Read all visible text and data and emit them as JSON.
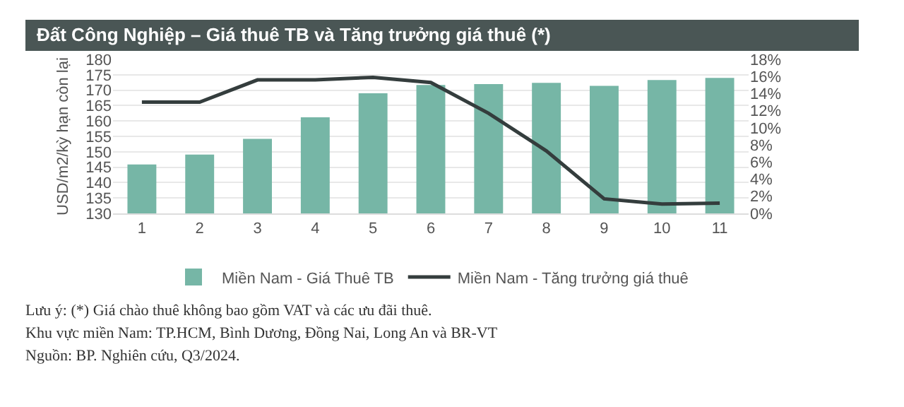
{
  "chart_data": {
    "type": "bar",
    "title": "Đất Công Nghiệp – Giá thuê TB và Tăng trưởng giá thuê (*)",
    "ylabel": "USD/m2/kỳ hạn còn lại",
    "categories": [
      "1",
      "2",
      "3",
      "4",
      "5",
      "6",
      "7",
      "8",
      "9",
      "10",
      "11"
    ],
    "series": [
      {
        "name": "Miền Nam - Giá Thuê TB",
        "color": "#76b6a6",
        "values": [
          145.9,
          149.1,
          154.2,
          161.2,
          169,
          171.7,
          172,
          172.4,
          171.4,
          173.3,
          174
        ]
      },
      {
        "name": "Miền Nam - Tăng trưởng giá thuê",
        "type": "line",
        "axis": "y2",
        "color": "#343d3d",
        "values": [
          13,
          13,
          15.6,
          15.6,
          15.9,
          15.3,
          11.7,
          7.3,
          1.7,
          1.1,
          1.2
        ]
      }
    ],
    "ylim": [
      130,
      180
    ],
    "yticks": [
      130,
      135,
      140,
      145,
      150,
      155,
      160,
      165,
      170,
      175,
      180
    ],
    "y2lim": [
      0,
      18
    ],
    "y2ticks": [
      {
        "value": 0,
        "label": "0%"
      },
      {
        "value": 2,
        "label": "2%"
      },
      {
        "value": 4,
        "label": "4%"
      },
      {
        "value": 6,
        "label": "6%"
      },
      {
        "value": 8,
        "label": "8%"
      },
      {
        "value": 10,
        "label": "10%"
      },
      {
        "value": 12,
        "label": "12%"
      },
      {
        "value": 14,
        "label": "14%"
      },
      {
        "value": 16,
        "label": "16%"
      },
      {
        "value": 18,
        "label": "18%"
      }
    ],
    "grid": "y",
    "legend": "bottom",
    "marker": "none",
    "annotations": [
      "Lưu ý: (*) Giá chào thuê không bao gồm VAT và các ưu đãi thuê.",
      "Khu vực miền Nam: TP.HCM, Bình Dương, Đồng Nai, Long An và BR-VT",
      "Nguồn: BP. Nghiên cứu, Q3/2024."
    ]
  }
}
